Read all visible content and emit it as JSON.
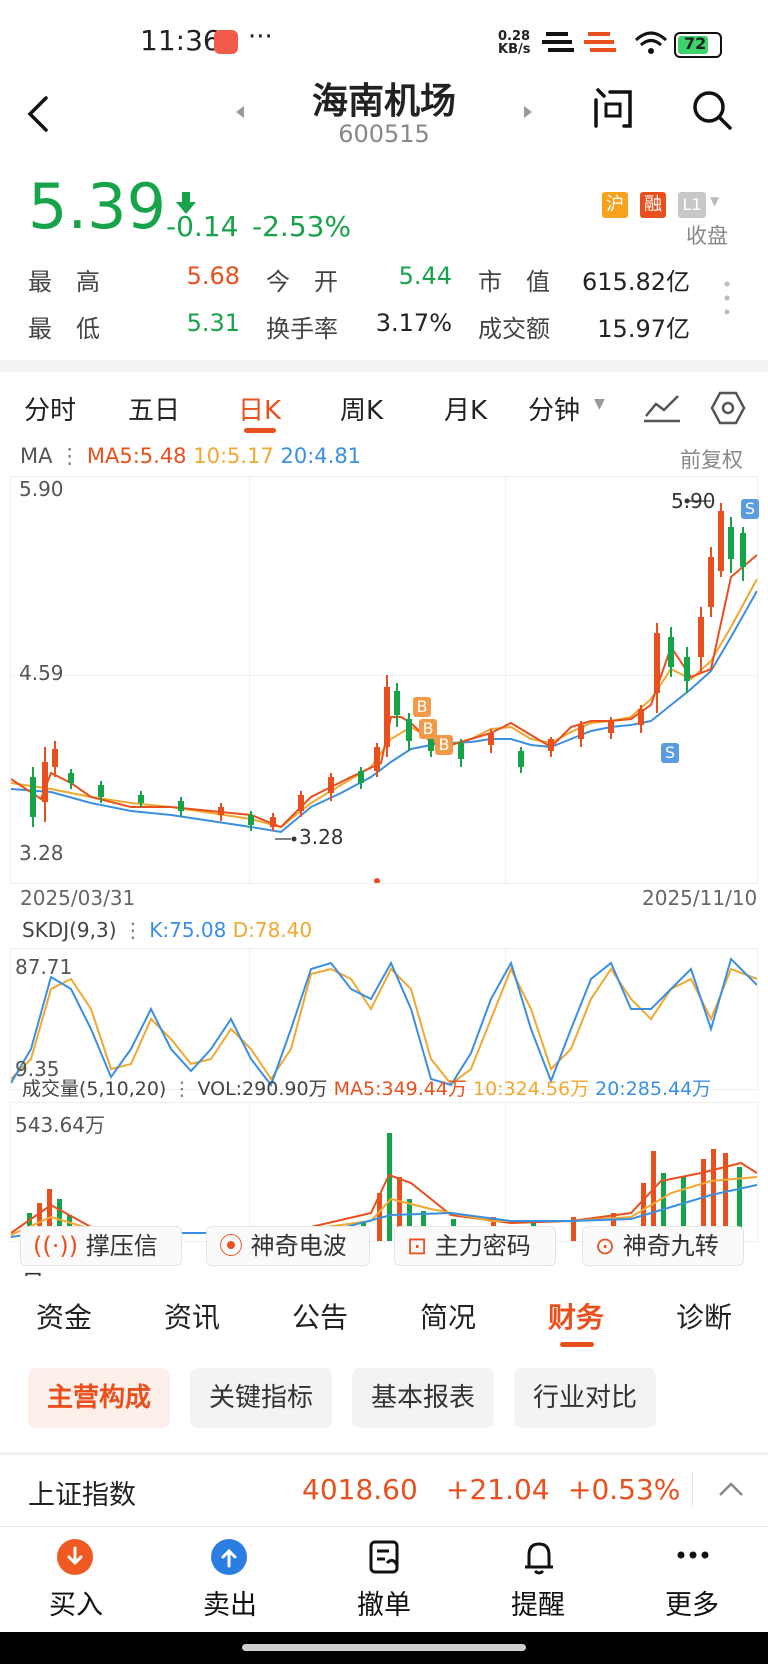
{
  "status": {
    "time": "11:36",
    "dots": "···",
    "net_speed_top": "0.28",
    "net_speed_bottom": "KB/s",
    "battery": "72"
  },
  "header": {
    "name": "海南机场",
    "code": "600515"
  },
  "quote": {
    "price": "5.39",
    "change": "-0.14",
    "change_pct": "-2.53%",
    "badges": [
      "沪",
      "融",
      "L1"
    ],
    "market_status": "收盘",
    "stats": [
      {
        "label": "最　高",
        "value": "5.68"
      },
      {
        "label": "今　开",
        "value": "5.44"
      },
      {
        "label": "市　值",
        "value": "615.82亿"
      },
      {
        "label": "最　低",
        "value": "5.31"
      },
      {
        "label": "换手率",
        "value": "3.17%"
      },
      {
        "label": "成交额",
        "value": "15.97亿"
      }
    ]
  },
  "chart_tabs": {
    "items": [
      "分时",
      "五日",
      "日K",
      "周K",
      "月K",
      "分钟"
    ],
    "active": "日K"
  },
  "ma_legend": {
    "label": "MA",
    "ma5": "MA5:5.48",
    "ma10": "10:5.17",
    "ma20": "20:4.81",
    "adjust": "前复权"
  },
  "kchart": {
    "ytop": "5.90",
    "ymid": "4.59",
    "ybot": "3.28",
    "max_label": "5.90",
    "min_label": "3.28",
    "date_start": "2025/03/31",
    "date_end": "2025/11/10",
    "markers": [
      "B",
      "B",
      "B",
      "S",
      "S"
    ]
  },
  "skdj": {
    "label": "SKDJ(9,3)",
    "k": "K:75.08",
    "d": "D:78.40",
    "ytop": "87.71",
    "ybot": "9.35"
  },
  "volume": {
    "label": "成交量(5,10,20)",
    "vol": "VOL:290.90万",
    "ma5": "MA5:349.44万",
    "ma10": "10:324.56万",
    "ma20": "20:285.44万",
    "ytop": "543.64万"
  },
  "features": [
    "撑压信号",
    "神奇电波",
    "主力密码",
    "神奇九转"
  ],
  "info_tabs": {
    "items": [
      "资金",
      "资讯",
      "公告",
      "简况",
      "财务",
      "诊断"
    ],
    "active": "财务"
  },
  "sub_tabs": {
    "items": [
      "主营构成",
      "关键指标",
      "基本报表",
      "行业对比"
    ],
    "active": "主营构成"
  },
  "index_bar": {
    "name": "上证指数",
    "value": "4018.60",
    "change": "+21.04",
    "pct": "+0.53%"
  },
  "bottom_nav": [
    {
      "label": "买入",
      "icon": "buy-icon"
    },
    {
      "label": "卖出",
      "icon": "sell-icon"
    },
    {
      "label": "撤单",
      "icon": "cancel-order-icon"
    },
    {
      "label": "提醒",
      "icon": "bell-icon"
    },
    {
      "label": "更多",
      "icon": "more-icon"
    }
  ],
  "colors": {
    "up": "#e8501e",
    "down": "#16a34a",
    "ma5": "#e8501e",
    "ma10": "#f0a830",
    "ma20": "#3b8fe0"
  }
}
